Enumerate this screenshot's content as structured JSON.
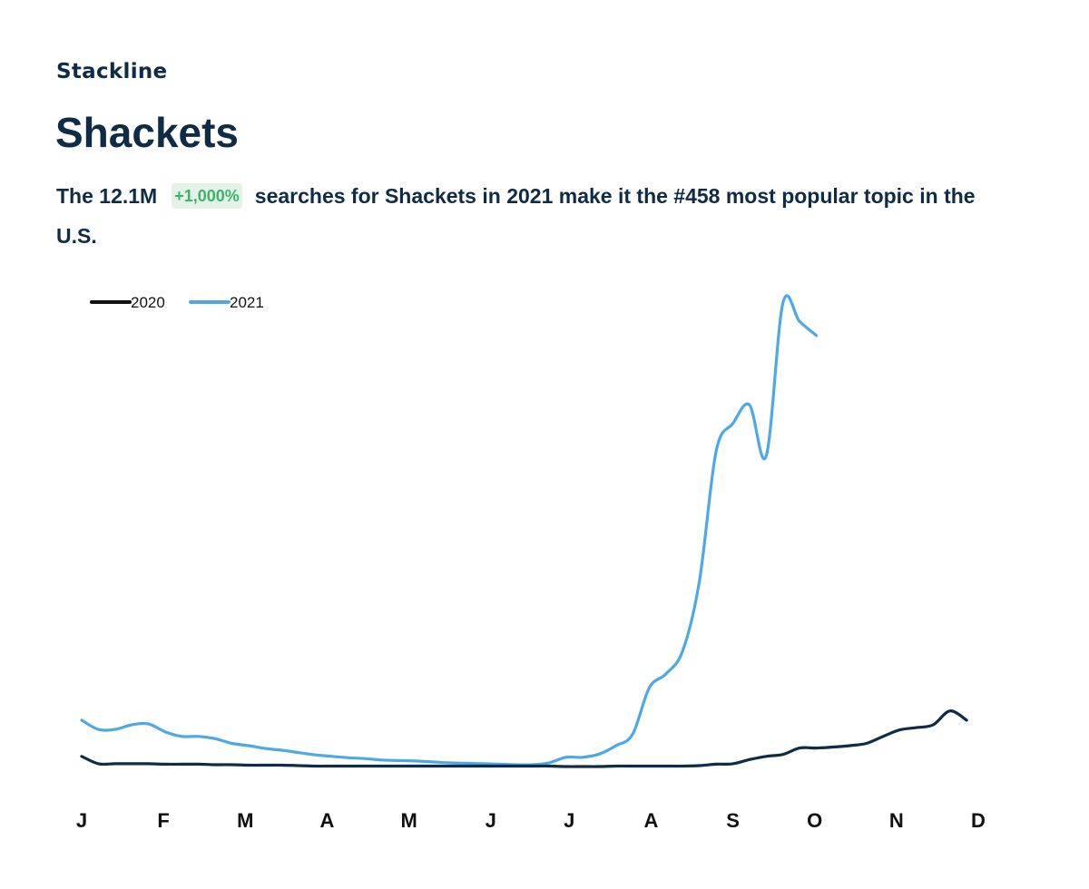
{
  "header": {
    "brand": "Stackline",
    "title": "Shackets",
    "summary_prefix": "The 12.1M",
    "badge": "+1,000%",
    "summary_suffix": "searches for Shackets in 2021 make it the #458 most popular topic in the U.S."
  },
  "colors": {
    "text": "#0f2b46",
    "badge_text": "#3fb36a",
    "badge_bg": "#e3f3e8",
    "series_2020": "#0f2b46",
    "series_2021": "#4ea8e8"
  },
  "chart_data": {
    "type": "line",
    "title": "",
    "xlabel": "",
    "ylabel": "",
    "x_unit": "week of year",
    "xlim": [
      1,
      52
    ],
    "ylim": [
      0,
      100
    ],
    "grid": false,
    "legend_position": "top-left",
    "x_ticks": [
      {
        "label": "J",
        "x": 1
      },
      {
        "label": "F",
        "x": 5.9
      },
      {
        "label": "M",
        "x": 10.8
      },
      {
        "label": "A",
        "x": 15.7
      },
      {
        "label": "M",
        "x": 20.6
      },
      {
        "label": "J",
        "x": 25.5
      },
      {
        "label": "J",
        "x": 30.2
      },
      {
        "label": "A",
        "x": 35.1
      },
      {
        "label": "S",
        "x": 40
      },
      {
        "label": "O",
        "x": 44.9
      },
      {
        "label": "N",
        "x": 49.8
      },
      {
        "label": "D",
        "x": 54.7
      }
    ],
    "series": [
      {
        "name": "2020",
        "color": "#0f2b46",
        "legend_color": "#111111",
        "points": [
          [
            1,
            2.2
          ],
          [
            2,
            0.6
          ],
          [
            3,
            0.6
          ],
          [
            4,
            0.6
          ],
          [
            5,
            0.6
          ],
          [
            6,
            0.5
          ],
          [
            7,
            0.5
          ],
          [
            8,
            0.5
          ],
          [
            9,
            0.4
          ],
          [
            10,
            0.4
          ],
          [
            11,
            0.3
          ],
          [
            12,
            0.3
          ],
          [
            13,
            0.3
          ],
          [
            14,
            0.2
          ],
          [
            15,
            0.1
          ],
          [
            16,
            0.1
          ],
          [
            17,
            0.1
          ],
          [
            18,
            0.1
          ],
          [
            19,
            0.1
          ],
          [
            20,
            0.1
          ],
          [
            21,
            0.1
          ],
          [
            22,
            0.1
          ],
          [
            23,
            0.1
          ],
          [
            24,
            0.1
          ],
          [
            25,
            0.1
          ],
          [
            26,
            0.1
          ],
          [
            27,
            0.1
          ],
          [
            28,
            0.1
          ],
          [
            29,
            0.1
          ],
          [
            30,
            0.0
          ],
          [
            31,
            0.0
          ],
          [
            32,
            0.0
          ],
          [
            33,
            0.1
          ],
          [
            34,
            0.1
          ],
          [
            35,
            0.1
          ],
          [
            36,
            0.1
          ],
          [
            37,
            0.1
          ],
          [
            38,
            0.2
          ],
          [
            39,
            0.5
          ],
          [
            40,
            0.6
          ],
          [
            41,
            1.5
          ],
          [
            42,
            2.2
          ],
          [
            43,
            2.6
          ],
          [
            44,
            4.0
          ],
          [
            45,
            4.0
          ],
          [
            46,
            4.2
          ],
          [
            47,
            4.5
          ],
          [
            48,
            5.0
          ],
          [
            49,
            6.5
          ],
          [
            50,
            7.9
          ],
          [
            51,
            8.4
          ],
          [
            52,
            9.0
          ],
          [
            53,
            12.0
          ],
          [
            54,
            10.0
          ]
        ]
      },
      {
        "name": "2021",
        "color": "#4ea8e8",
        "legend_color": "#4ea8e8",
        "points": [
          [
            1,
            10.0
          ],
          [
            2,
            8.0
          ],
          [
            3,
            8.0
          ],
          [
            4,
            9.0
          ],
          [
            5,
            9.2
          ],
          [
            6,
            7.5
          ],
          [
            7,
            6.5
          ],
          [
            8,
            6.5
          ],
          [
            9,
            6.0
          ],
          [
            10,
            5.0
          ],
          [
            11,
            4.5
          ],
          [
            12,
            3.9
          ],
          [
            13,
            3.5
          ],
          [
            14,
            3.0
          ],
          [
            15,
            2.5
          ],
          [
            16,
            2.2
          ],
          [
            17,
            1.9
          ],
          [
            18,
            1.7
          ],
          [
            19,
            1.4
          ],
          [
            20,
            1.3
          ],
          [
            21,
            1.2
          ],
          [
            22,
            1.0
          ],
          [
            23,
            0.8
          ],
          [
            24,
            0.7
          ],
          [
            25,
            0.6
          ],
          [
            26,
            0.5
          ],
          [
            27,
            0.4
          ],
          [
            28,
            0.4
          ],
          [
            29,
            0.8
          ],
          [
            30,
            2.0
          ],
          [
            31,
            2.0
          ],
          [
            32,
            2.7
          ],
          [
            33,
            4.5
          ],
          [
            34,
            7.0
          ],
          [
            35,
            17.0
          ],
          [
            36,
            20.0
          ],
          [
            37,
            25.0
          ],
          [
            38,
            40.0
          ],
          [
            39,
            68.0
          ],
          [
            40,
            74.0
          ],
          [
            41,
            78.0
          ],
          [
            42,
            67.0
          ],
          [
            43,
            100.0
          ],
          [
            44,
            96.0
          ],
          [
            45,
            93.0
          ]
        ]
      }
    ]
  }
}
